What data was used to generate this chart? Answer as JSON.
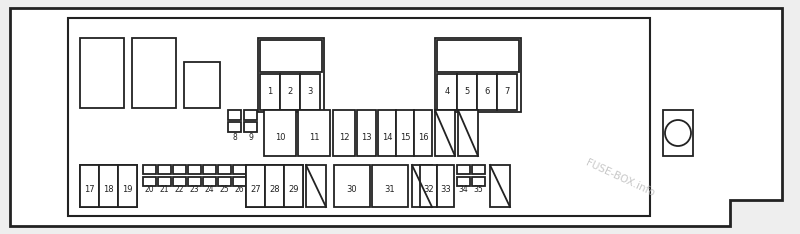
{
  "bg_color": "#eeeeee",
  "line_color": "#222222",
  "lw": 1.3,
  "fs": 6.0,
  "watermark": "FUSE-BOX.info",
  "watermark_color": "#bbbbbb"
}
